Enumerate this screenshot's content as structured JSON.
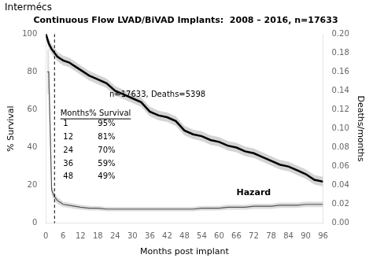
{
  "chart_data": {
    "type": "line",
    "title": "Continuous Flow LVAD/BiVAD Implants:  2008 – 2016, n=17633",
    "logo": "Intermécs",
    "xlabel": "Months post implant",
    "ylabel": "% Survival",
    "y2label": "Deaths/months",
    "annotations": [
      "n=17633, Deaths=5398",
      "Hazard"
    ],
    "table": {
      "headers": [
        "Months",
        "% Survival"
      ],
      "rows": [
        [
          1,
          "95%"
        ],
        [
          12,
          "81%"
        ],
        [
          24,
          "70%"
        ],
        [
          36,
          "59%"
        ],
        [
          48,
          "49%"
        ]
      ]
    },
    "xlim": [
      0,
      96
    ],
    "xticks": [
      0,
      6,
      12,
      18,
      24,
      30,
      36,
      42,
      48,
      54,
      60,
      66,
      72,
      78,
      84,
      90,
      96
    ],
    "ylim": [
      0,
      100
    ],
    "yticks": [
      0,
      20,
      40,
      60,
      80,
      100
    ],
    "y2lim": [
      0.0,
      0.2
    ],
    "y2ticks": [
      {
        "value": 0.0,
        "label": "0.00"
      },
      {
        "value": 0.02,
        "label": "0.02"
      },
      {
        "value": 0.04,
        "label": "0.04"
      },
      {
        "value": 0.06,
        "label": "0.06"
      },
      {
        "value": 0.08,
        "label": "0.08"
      },
      {
        "value": 0.1,
        "label": "0.10"
      },
      {
        "value": 0.12,
        "label": "0.12"
      },
      {
        "value": 0.14,
        "label": "0.14"
      },
      {
        "value": 0.16,
        "label": "0.16"
      },
      {
        "value": 0.18,
        "label": "0.18"
      },
      {
        "value": 0.2,
        "label": "0.20"
      }
    ],
    "grid": false,
    "vlines": [
      {
        "x": 3,
        "color": "#000000",
        "line_style": "dashed"
      }
    ],
    "series": [
      {
        "type": "band",
        "color": "#aaaaaa",
        "x": [
          0,
          1,
          2,
          3,
          4,
          5,
          6,
          8,
          10,
          12,
          15,
          18,
          21,
          24,
          27,
          30,
          33,
          36,
          39,
          42,
          45,
          48,
          51,
          54,
          57,
          60,
          63,
          66,
          69,
          72,
          75,
          78,
          81,
          84,
          87,
          90,
          93,
          96
        ],
        "lower": [
          97.5,
          92.5,
          89.5,
          87.5,
          85.5,
          84.5,
          83.5,
          82.5,
          80.5,
          78.5,
          75.5,
          73.5,
          71.5,
          67.5,
          65.5,
          63.5,
          61.5,
          56.5,
          54.5,
          53.5,
          51.5,
          46.5,
          44.5,
          43.5,
          41.5,
          40.5,
          38.5,
          37.5,
          35.5,
          34.5,
          32.5,
          30.5,
          28.5,
          27.5,
          25.5,
          23.5,
          20.5,
          19.5
        ],
        "upper": [
          100,
          97.5,
          94.5,
          92.5,
          90.5,
          89.5,
          88.5,
          87.5,
          85.5,
          83.5,
          80.5,
          78.5,
          76.5,
          72.5,
          70.5,
          68.5,
          66.5,
          61.5,
          59.5,
          58.5,
          56.5,
          51.5,
          49.5,
          48.5,
          46.5,
          45.5,
          43.5,
          42.5,
          40.5,
          39.5,
          37.5,
          35.5,
          33.5,
          32.5,
          30.5,
          28.5,
          25.5,
          24.5
        ]
      },
      {
        "type": "line",
        "color": "#000000",
        "x": [
          0,
          1,
          2,
          3,
          4,
          5,
          6,
          8,
          10,
          12,
          15,
          18,
          21,
          24,
          27,
          30,
          33,
          36,
          39,
          42,
          45,
          48,
          51,
          54,
          57,
          60,
          63,
          66,
          69,
          72,
          75,
          78,
          81,
          84,
          87,
          90,
          93,
          96
        ],
        "values": [
          100,
          95,
          92,
          90,
          88,
          87,
          86,
          85,
          83,
          81,
          78,
          76,
          74,
          70,
          68,
          66,
          64,
          59,
          57,
          56,
          54,
          49,
          47,
          46,
          44,
          43,
          41,
          40,
          38,
          37,
          35,
          33,
          31,
          30,
          28,
          26,
          23,
          22
        ]
      },
      {
        "type": "band",
        "color": "#aaaaaa",
        "axis": "y2",
        "x": [
          0.5,
          1,
          2,
          3,
          4,
          5,
          6,
          8,
          10,
          12,
          15,
          18,
          21,
          24,
          27,
          30,
          33,
          36,
          39,
          42,
          45,
          48,
          51,
          54,
          57,
          60,
          63,
          66,
          69,
          72,
          75,
          78,
          81,
          84,
          87,
          90,
          93,
          96
        ],
        "lower": [
          0.136,
          0.136,
          0.02975,
          0.0238,
          0.0204,
          0.0187,
          0.017,
          0.01615,
          0.0153,
          0.01445,
          0.0136,
          0.0136,
          0.01275,
          0.01275,
          0.01275,
          0.01275,
          0.01275,
          0.01275,
          0.01275,
          0.01275,
          0.01275,
          0.01275,
          0.01275,
          0.0136,
          0.0136,
          0.0136,
          0.01445,
          0.01445,
          0.01445,
          0.0153,
          0.0153,
          0.0153,
          0.01615,
          0.01615,
          0.01615,
          0.017,
          0.017,
          0.017
        ],
        "upper": [
          0.184,
          0.184,
          0.04025,
          0.0322,
          0.0276,
          0.0253,
          0.023,
          0.02185,
          0.0207,
          0.01955,
          0.0184,
          0.0184,
          0.01725,
          0.01725,
          0.01725,
          0.01725,
          0.01725,
          0.01725,
          0.01725,
          0.01725,
          0.01725,
          0.01725,
          0.01725,
          0.0184,
          0.0184,
          0.0184,
          0.01955,
          0.01955,
          0.01955,
          0.0207,
          0.0207,
          0.0207,
          0.02185,
          0.02185,
          0.02185,
          0.023,
          0.023,
          0.023
        ]
      },
      {
        "type": "line",
        "color": "#555555",
        "axis": "y2",
        "x": [
          0.5,
          1,
          2,
          3,
          4,
          5,
          6,
          8,
          10,
          12,
          15,
          18,
          21,
          24,
          27,
          30,
          33,
          36,
          39,
          42,
          45,
          48,
          51,
          54,
          57,
          60,
          63,
          66,
          69,
          72,
          75,
          78,
          81,
          84,
          87,
          90,
          93,
          96
        ],
        "values": [
          0.16,
          0.16,
          0.035,
          0.028,
          0.024,
          0.022,
          0.02,
          0.019,
          0.018,
          0.017,
          0.016,
          0.016,
          0.015,
          0.015,
          0.015,
          0.015,
          0.015,
          0.015,
          0.015,
          0.015,
          0.015,
          0.015,
          0.015,
          0.016,
          0.016,
          0.016,
          0.017,
          0.017,
          0.017,
          0.018,
          0.018,
          0.018,
          0.019,
          0.019,
          0.019,
          0.02,
          0.02,
          0.02
        ]
      }
    ]
  }
}
